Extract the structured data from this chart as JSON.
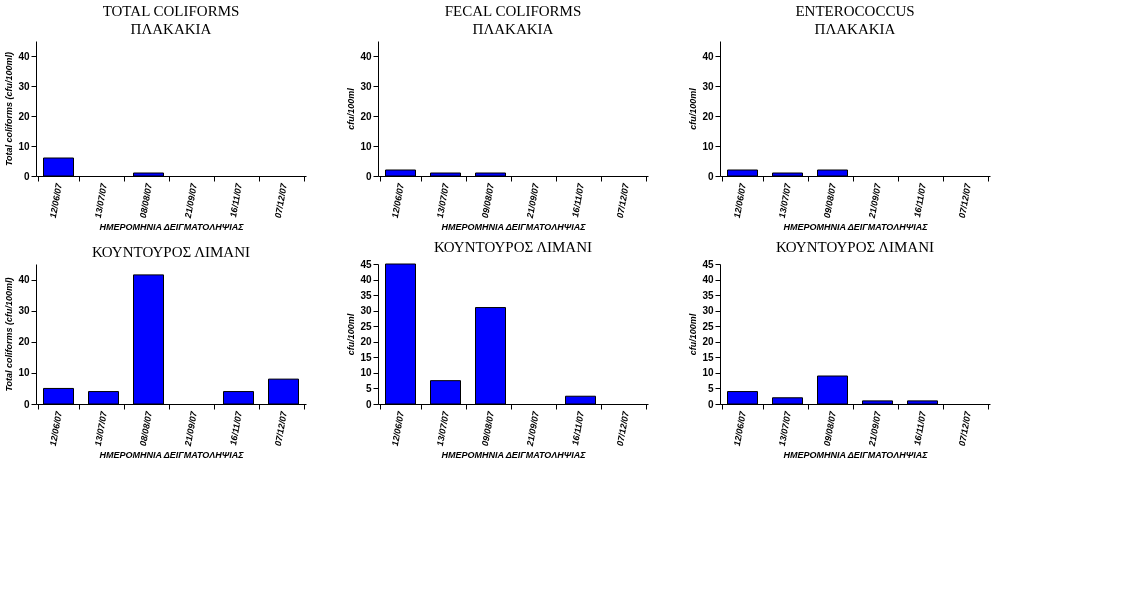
{
  "chart_data": [
    {
      "type": "bar",
      "title": "TOTAL COLIFORMS",
      "subtitle": "ΠΛΑΚΑΚΙΑ",
      "xlabel": "ΗΜΕΡΟΜΗΝΙΑ ΔΕΙΓΜΑΤΟΛΗΨΙΑΣ",
      "ylabel": "Total coliforms (cfu/100ml)",
      "categories": [
        "12/06/07",
        "13/07/07",
        "08/08/07",
        "21/09/07",
        "16/11/07",
        "07/12/07"
      ],
      "values": [
        6,
        null,
        1,
        null,
        null,
        null
      ],
      "color": "#0000ff",
      "ylim": [
        0,
        45
      ],
      "yticks": [
        0,
        10,
        20,
        30,
        40
      ]
    },
    {
      "type": "bar",
      "title": "FECAL COLIFORMS",
      "subtitle": "ΠΛΑΚΑΚΙΑ",
      "xlabel": "ΗΜΕΡΟΜΗΝΙΑ ΔΕΙΓΜΑΤΟΛΗΨΙΑΣ",
      "ylabel": "cfu/100ml",
      "categories": [
        "12/06/07",
        "13/07/07",
        "09/08/07",
        "21/09/07",
        "16/11/07",
        "07/12/07"
      ],
      "values": [
        2,
        1,
        1,
        null,
        null,
        null
      ],
      "color": "#0000ff",
      "ylim": [
        0,
        45
      ],
      "yticks": [
        0,
        10,
        20,
        30,
        40
      ]
    },
    {
      "type": "bar",
      "title": "ENTEROCOCCUS",
      "subtitle": "ΠΛΑΚΑΚΙΑ",
      "xlabel": "ΗΜΕΡΟΜΗΝΙΑ ΔΕΙΓΜΑΤΟΛΗΨΙΑΣ",
      "ylabel": "cfu/100ml",
      "categories": [
        "12/06/07",
        "13/07/07",
        "09/08/07",
        "21/09/07",
        "16/11/07",
        "07/12/07"
      ],
      "values": [
        2,
        1,
        2,
        null,
        null,
        null
      ],
      "color": "#0000ff",
      "ylim": [
        0,
        45
      ],
      "yticks": [
        0,
        10,
        20,
        30,
        40
      ]
    },
    {
      "type": "bar",
      "title": "ΚΟΥΝΤΟΥΡΟΣ ΛΙΜΑΝΙ",
      "xlabel": "ΗΜΕΡΟΜΗΝΙΑ ΔΕΙΓΜΑΤΟΛΗΨΙΑΣ",
      "ylabel": "Total coliforms (cfu/100ml)",
      "categories": [
        "12/06/07",
        "13/07/07",
        "08/08/07",
        "21/09/07",
        "16/11/07",
        "07/12/07"
      ],
      "values": [
        5,
        4,
        41.5,
        null,
        4,
        8
      ],
      "color": "#0000ff",
      "ylim": [
        0,
        45
      ],
      "yticks": [
        0,
        10,
        20,
        30,
        40
      ]
    },
    {
      "type": "bar",
      "title": "ΚΟΥΝΤΟΥΡΟΣ ΛΙΜΑΝΙ",
      "xlabel": "ΗΜΕΡΟΜΗΝΙΑ ΔΕΙΓΜΑΤΟΛΗΨΙΑΣ",
      "ylabel": "cfu/100ml",
      "categories": [
        "12/06/07",
        "13/07/07",
        "09/08/07",
        "21/09/07",
        "16/11/07",
        "07/12/07"
      ],
      "values": [
        45,
        7.5,
        31,
        null,
        2.5,
        null
      ],
      "color": "#0000ff",
      "ylim": [
        0,
        45
      ],
      "yticks": [
        0,
        5,
        10,
        15,
        20,
        25,
        30,
        35,
        40,
        45
      ]
    },
    {
      "type": "bar",
      "title": "ΚΟΥΝΤΟΥΡΟΣ ΛΙΜΑΝΙ",
      "xlabel": "ΗΜΕΡΟΜΗΝΙΑ ΔΕΙΓΜΑΤΟΛΗΨΙΑΣ",
      "ylabel": "cfu/100ml",
      "categories": [
        "12/06/07",
        "13/07/07",
        "09/08/07",
        "21/09/07",
        "16/11/07",
        "07/12/07"
      ],
      "values": [
        4,
        2,
        9,
        1,
        1,
        null
      ],
      "color": "#0000ff",
      "ylim": [
        0,
        45
      ],
      "yticks": [
        0,
        5,
        10,
        15,
        20,
        25,
        30,
        35,
        40,
        45
      ]
    }
  ]
}
